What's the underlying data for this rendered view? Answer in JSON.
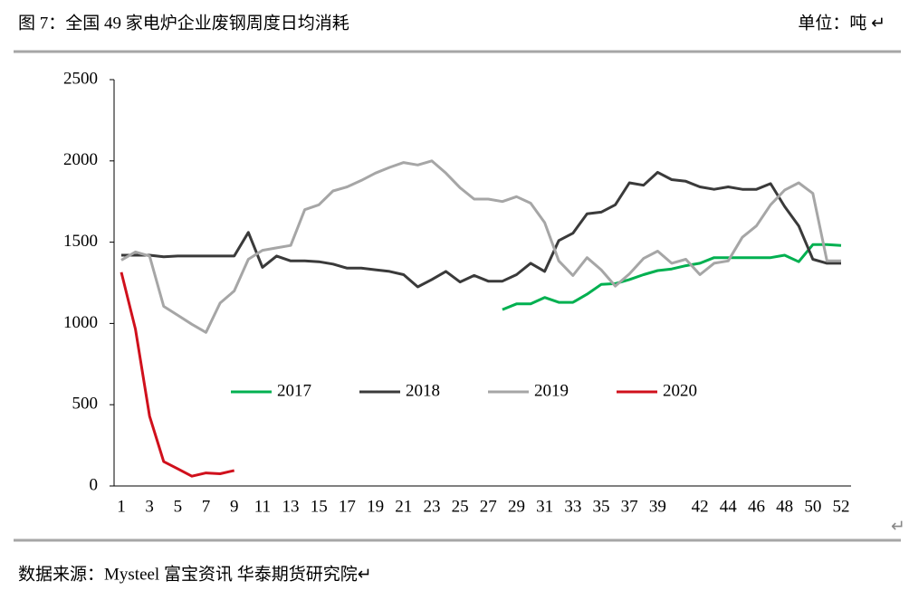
{
  "chart_data": {
    "type": "line",
    "title": "图 7：全国 49 家电炉企业废钢周度日均消耗",
    "unit": "单位：吨 ↵",
    "categories": [
      1,
      null,
      3,
      null,
      5,
      null,
      7,
      null,
      9,
      null,
      11,
      null,
      13,
      null,
      15,
      null,
      17,
      null,
      19,
      null,
      21,
      null,
      23,
      null,
      25,
      null,
      27,
      null,
      29,
      null,
      31,
      null,
      33,
      null,
      35,
      null,
      37,
      null,
      39,
      null,
      null,
      42,
      null,
      44,
      null,
      46,
      null,
      48,
      null,
      50,
      null,
      52
    ],
    "series": [
      {
        "name": "2017",
        "color": "#00b050",
        "values": [
          null,
          null,
          null,
          null,
          null,
          null,
          null,
          null,
          null,
          null,
          null,
          null,
          null,
          null,
          null,
          null,
          null,
          null,
          null,
          null,
          null,
          null,
          null,
          null,
          null,
          null,
          null,
          1085,
          1120,
          1120,
          1160,
          1130,
          1130,
          1180,
          1240,
          1245,
          1270,
          1300,
          1325,
          1335,
          1355,
          1370,
          1405,
          1405,
          1405,
          1405,
          1405,
          1420,
          1380,
          1485,
          1485,
          1480
        ]
      },
      {
        "name": "2018",
        "color": "#3a3a3a",
        "values": [
          1420,
          1420,
          1420,
          1410,
          1415,
          1415,
          1415,
          1415,
          1415,
          1560,
          1345,
          1415,
          1385,
          1385,
          1380,
          1365,
          1340,
          1340,
          1330,
          1320,
          1300,
          1225,
          1270,
          1320,
          1255,
          1295,
          1260,
          1260,
          1300,
          1370,
          1320,
          1510,
          1555,
          1675,
          1685,
          1730,
          1865,
          1850,
          1930,
          1885,
          1875,
          1840,
          1825,
          1840,
          1825,
          1825,
          1860,
          1720,
          1600,
          1395,
          1370,
          1370
        ]
      },
      {
        "name": "2019",
        "color": "#a6a6a6",
        "values": [
          1390,
          1440,
          1415,
          1105,
          1050,
          995,
          945,
          1125,
          1200,
          1395,
          1450,
          1465,
          1480,
          1700,
          1730,
          1815,
          1840,
          1880,
          1925,
          1960,
          1990,
          1975,
          2000,
          1925,
          1835,
          1765,
          1765,
          1750,
          1780,
          1740,
          1620,
          1385,
          1295,
          1405,
          1330,
          1230,
          1305,
          1400,
          1445,
          1370,
          1395,
          1300,
          1370,
          1385,
          1530,
          1600,
          1730,
          1820,
          1865,
          1800,
          1385,
          1385
        ]
      },
      {
        "name": "2020",
        "color": "#d0101c",
        "values": [
          1315,
          965,
          430,
          150,
          105,
          60,
          80,
          75,
          95,
          null,
          null,
          null,
          null,
          null,
          null,
          null,
          null,
          null,
          null,
          null,
          null,
          null,
          null,
          null,
          null,
          null,
          null,
          null,
          null,
          null,
          null,
          null,
          null,
          null,
          null,
          null,
          null,
          null,
          null,
          null,
          null,
          null,
          null,
          null,
          null,
          null,
          null,
          null,
          null,
          null,
          null,
          null
        ]
      }
    ],
    "ylim": [
      0,
      2500
    ],
    "yticks": [
      0,
      500,
      1000,
      1500,
      2000,
      2500
    ],
    "grid": false,
    "legend": "center"
  },
  "end_mark": "↵",
  "source": "数据来源：Mysteel 富宝资讯 华泰期货研究院↵"
}
